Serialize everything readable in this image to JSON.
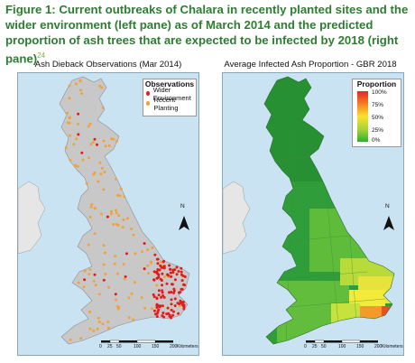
{
  "caption": {
    "text": "Figure 1: Current outbreaks of Chalara in recently planted sites and the wider environment (left pane) as of March 2014 and the predicted proportion of ash trees that are expected to be infected by 2018 (right pane)",
    "footnote": "24"
  },
  "left_map": {
    "title": "Ash Dieback Observations (Mar 2014)",
    "legend_title": "Observations",
    "legend_items": [
      {
        "label": "Wider Environment",
        "color": "#e21b1b"
      },
      {
        "label": "Recent Planting",
        "color": "#f2a23a"
      }
    ],
    "scale_ticks": [
      "0",
      "25",
      "50",
      "100",
      "150",
      "200"
    ],
    "scale_unit": "Kilometers",
    "north_label": "N",
    "land_color": "#c8c8c8",
    "sea_color": "#c9e3f3"
  },
  "right_map": {
    "title": "Average Infected Ash Proportion - GBR 2018",
    "legend_title": "Proportion",
    "legend_ticks": [
      "100%",
      "75%",
      "50%",
      "25%",
      "0%"
    ],
    "legend_colors": [
      "#e8232b",
      "#f57f20",
      "#f9e22e",
      "#a9d437",
      "#2fae2f"
    ],
    "scale_ticks": [
      "0",
      "25",
      "50",
      "100",
      "150",
      "200"
    ],
    "scale_unit": "Kilometers",
    "north_label": "N",
    "sea_color": "#c9e3f3"
  }
}
